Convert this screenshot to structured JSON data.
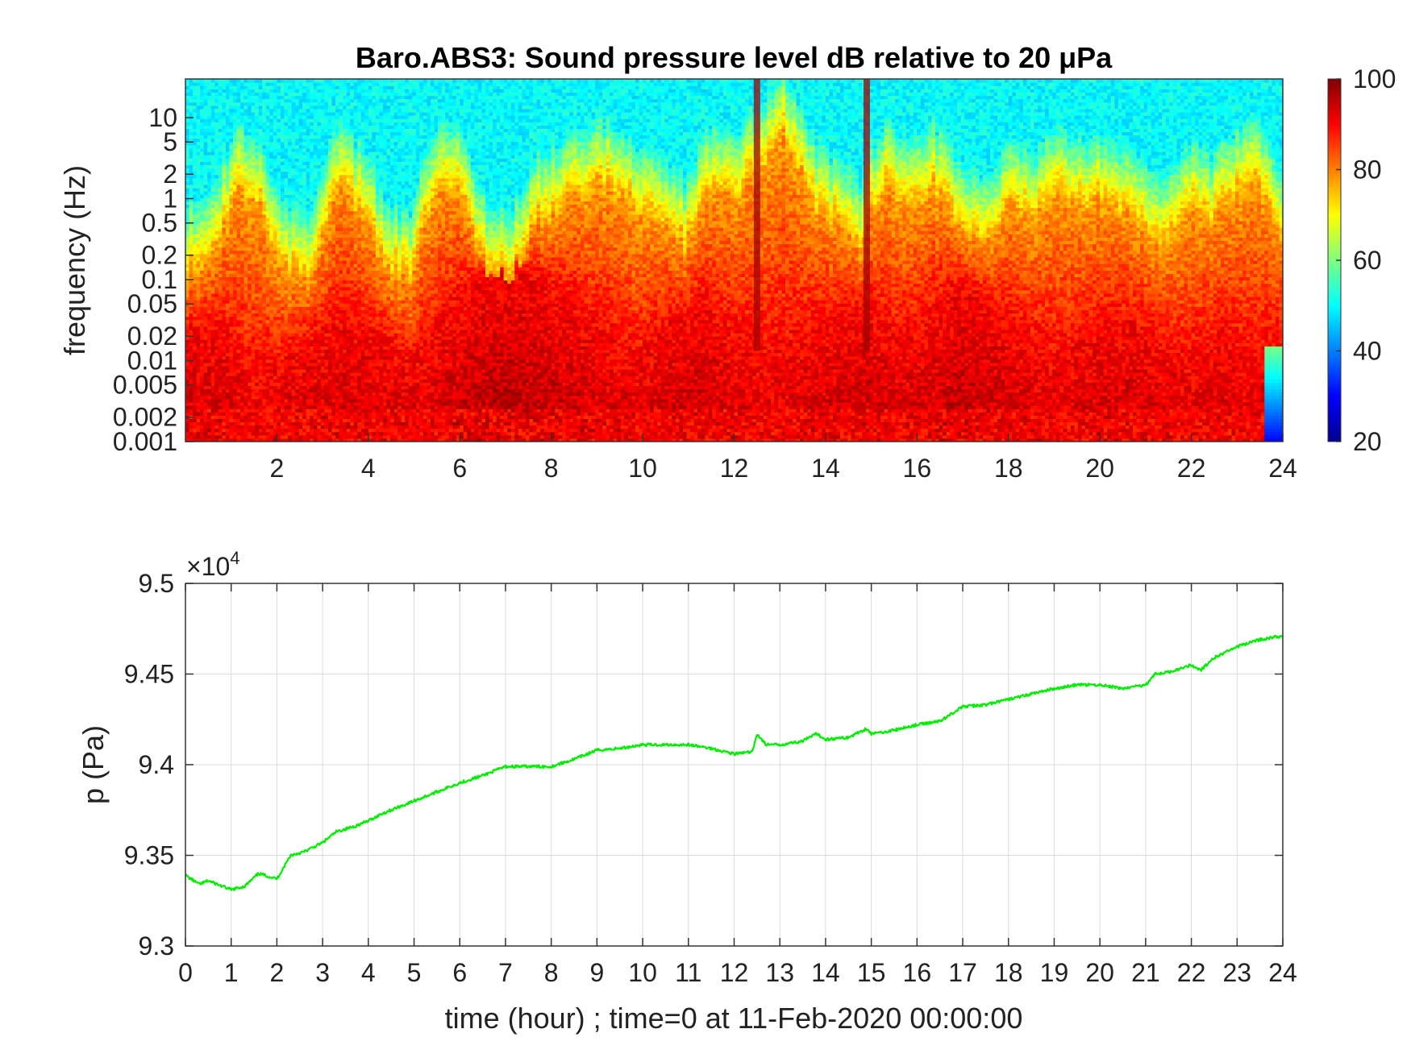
{
  "chart_data": [
    {
      "type": "heatmap",
      "title": "Baro.ABS3: Sound pressure level dB relative to 20 μPa",
      "ylabel": "frequency (Hz)",
      "xlabel": "",
      "y_scale": "log",
      "ylim": [
        0.001,
        30
      ],
      "xlim": [
        0,
        24
      ],
      "x_ticks": [
        2,
        4,
        6,
        8,
        10,
        12,
        14,
        16,
        18,
        20,
        22,
        24
      ],
      "y_ticks": [
        10,
        5,
        2,
        1,
        0.5,
        0.2,
        0.1,
        0.05,
        0.02,
        0.01,
        0.005,
        0.002,
        0.001
      ],
      "colormap": "jet",
      "colorbar": {
        "range": [
          20,
          100
        ],
        "ticks": [
          100,
          80,
          60,
          40,
          20
        ]
      },
      "top_edge_hz": [
        0.5,
        0.6,
        5,
        3,
        0.5,
        0.4,
        5,
        3,
        0.6,
        0.4,
        5,
        4,
        0.6,
        0.4,
        2,
        3,
        5,
        6,
        3,
        2,
        1,
        5,
        4,
        8,
        25,
        4,
        2,
        1,
        6,
        3,
        5,
        2,
        1,
        3,
        2,
        5,
        3,
        4,
        2,
        1,
        3,
        2,
        4,
        6,
        1
      ],
      "upper_deep_red_hz": [
        0.02,
        0.03,
        0.005,
        0.01,
        0.02,
        0.03,
        0.02,
        0.01,
        0.03,
        0.1,
        0.2,
        0.1,
        0.05,
        0.02,
        0.01,
        0.03,
        0.05,
        0.02,
        0.01,
        0.02,
        0.03,
        0.05,
        0.02,
        0.03,
        0.1,
        0.05,
        0.02,
        0.01,
        0.02,
        0.03,
        0.02,
        0.01,
        0.02,
        0.01,
        0.02
      ],
      "annotations": [
        {
          "x_hour": 12.5,
          "note": "narrow high-level streak reaching top of band"
        },
        {
          "x_hour": 14.9,
          "note": "high-level streak"
        },
        {
          "x_hour": 23.9,
          "note": "low-level region at lowest frequencies"
        }
      ]
    },
    {
      "type": "line",
      "xlabel": "time (hour) ; time=0 at 11-Feb-2020 00:00:00",
      "ylabel": "p (Pa)",
      "y_multiplier": "×10",
      "y_multiplier_exponent": "4",
      "xlim": [
        0,
        24
      ],
      "ylim": [
        9.3,
        9.5
      ],
      "x_ticks": [
        0,
        1,
        2,
        3,
        4,
        5,
        6,
        7,
        8,
        9,
        10,
        11,
        12,
        13,
        14,
        15,
        16,
        17,
        18,
        19,
        20,
        21,
        22,
        23,
        24
      ],
      "y_ticks": [
        9.3,
        9.35,
        9.4,
        9.45,
        9.5
      ],
      "grid": true,
      "series": [
        {
          "color": "#00ee00",
          "x": [
            0,
            0.3,
            0.5,
            0.8,
            1.0,
            1.3,
            1.6,
            2.0,
            2.3,
            2.6,
            3.0,
            3.3,
            3.7,
            4.0,
            4.3,
            4.7,
            5.0,
            5.5,
            6.0,
            6.5,
            7.0,
            7.5,
            8.0,
            8.5,
            9.0,
            9.5,
            10.0,
            10.5,
            11.0,
            11.5,
            12.0,
            12.4,
            12.5,
            12.7,
            13.0,
            13.5,
            13.8,
            14.0,
            14.5,
            14.9,
            15.0,
            15.5,
            16.0,
            16.5,
            17.0,
            17.5,
            18.0,
            18.5,
            19.0,
            19.5,
            20.0,
            20.5,
            21.0,
            21.2,
            21.5,
            22.0,
            22.2,
            22.5,
            23.0,
            23.5,
            24.0
          ],
          "y": [
            9.339,
            9.334,
            9.336,
            9.333,
            9.331,
            9.333,
            9.34,
            9.337,
            9.35,
            9.352,
            9.357,
            9.363,
            9.366,
            9.369,
            9.373,
            9.377,
            9.38,
            9.385,
            9.39,
            9.394,
            9.399,
            9.399,
            9.399,
            9.403,
            9.408,
            9.409,
            9.411,
            9.411,
            9.411,
            9.409,
            9.406,
            9.407,
            9.417,
            9.411,
            9.411,
            9.413,
            9.417,
            9.414,
            9.415,
            9.42,
            9.417,
            9.419,
            9.422,
            9.424,
            9.432,
            9.433,
            9.436,
            9.439,
            9.442,
            9.444,
            9.444,
            9.442,
            9.444,
            9.45,
            9.451,
            9.455,
            9.452,
            9.459,
            9.465,
            9.469,
            9.471
          ]
        }
      ]
    }
  ]
}
